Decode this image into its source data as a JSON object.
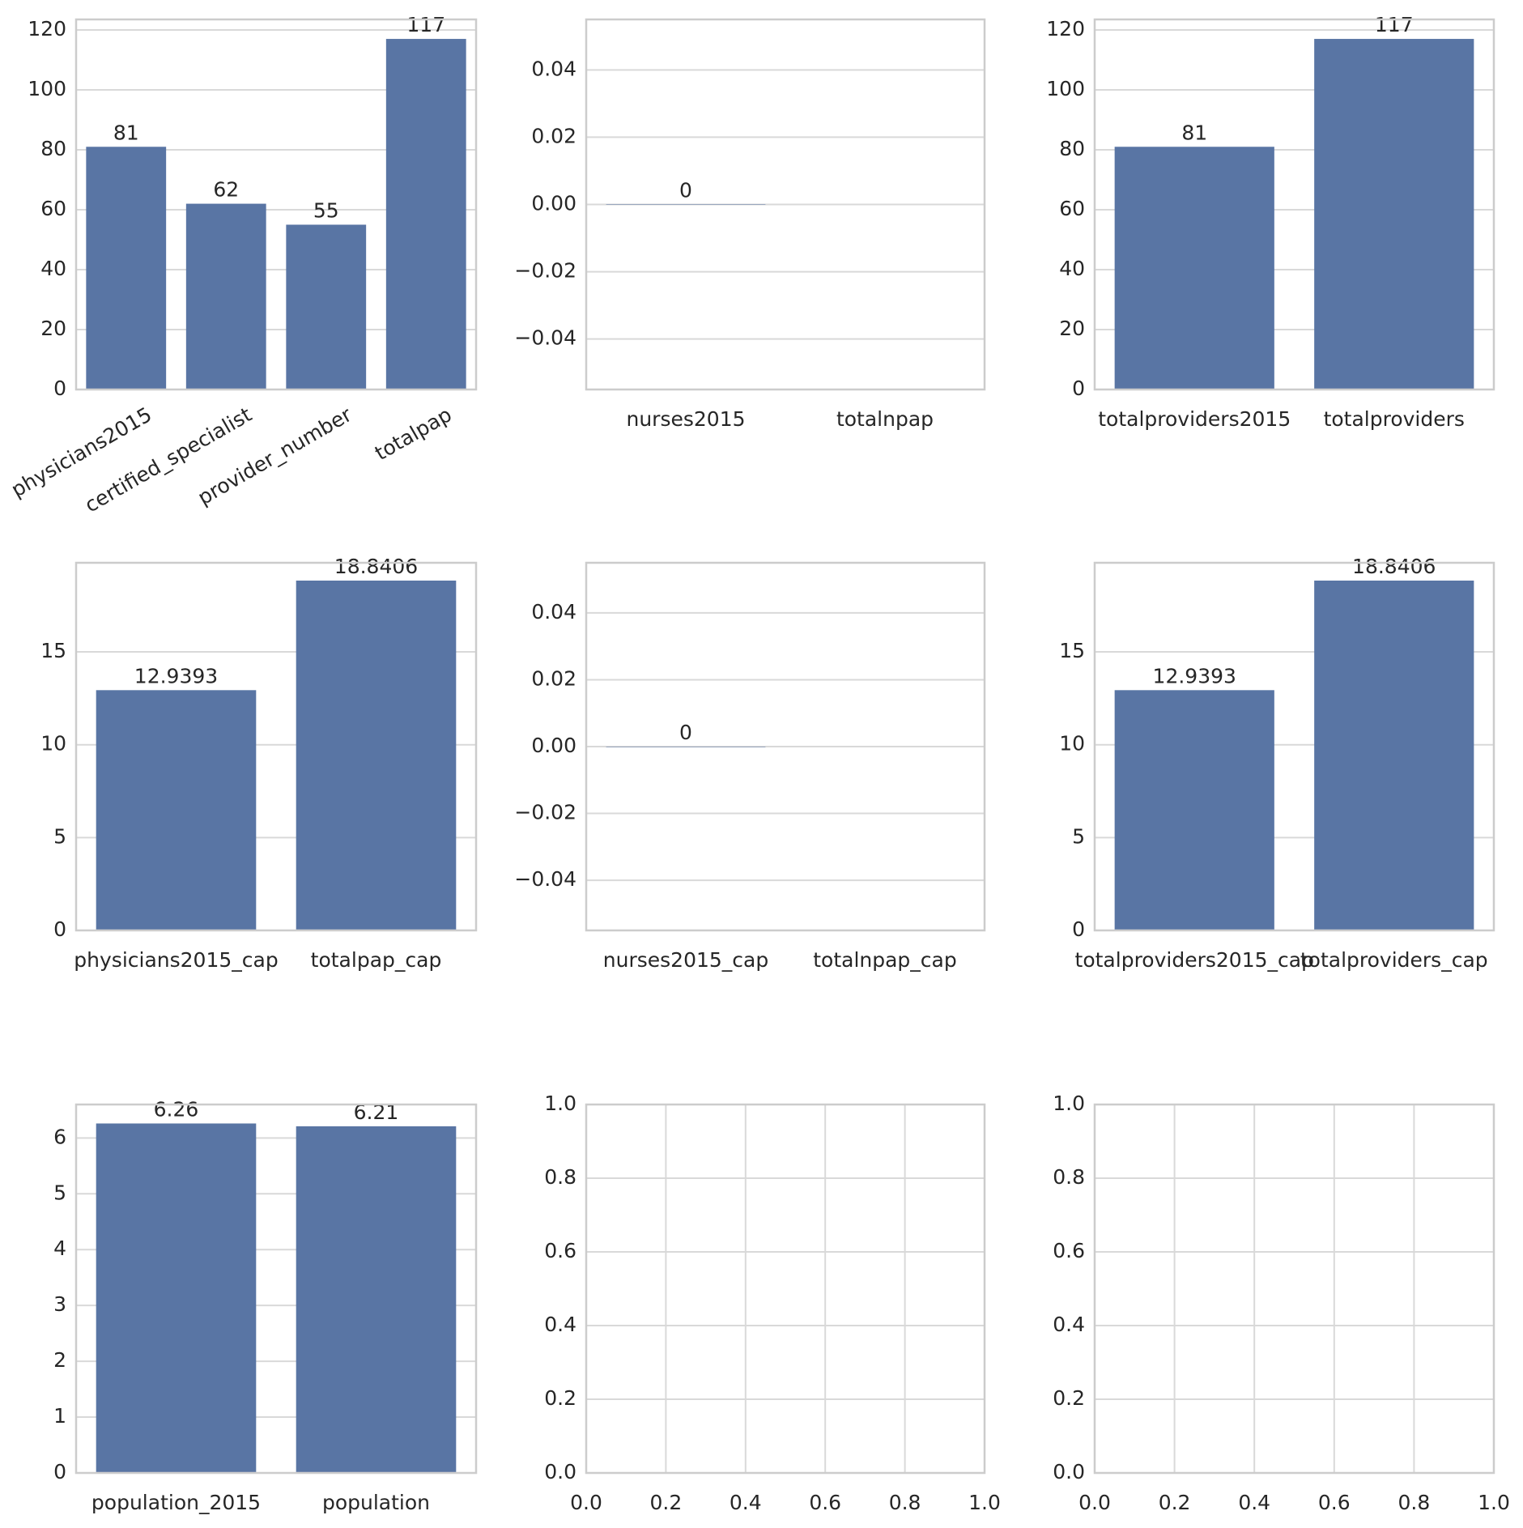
{
  "chart_data": [
    {
      "type": "bar",
      "categories": [
        "physicians2015",
        "certified_specialist",
        "provider_number",
        "totalpap"
      ],
      "values": [
        81,
        62,
        55,
        117
      ],
      "color": "#5975a4",
      "ylim": [
        0,
        123.5
      ],
      "yticks": [
        0,
        20,
        40,
        60,
        80,
        100,
        120
      ],
      "grid": true,
      "x_label_rotation": 30
    },
    {
      "type": "bar",
      "categories": [
        "nurses2015",
        "totalnpap"
      ],
      "values": [
        0,
        null
      ],
      "color": "#5975a4",
      "ylim": [
        -0.055,
        0.055
      ],
      "yticks": [
        {
          "value": -0.04,
          "label": "−0.04"
        },
        {
          "value": -0.02,
          "label": "−0.02"
        },
        {
          "value": 0,
          "label": "0.00"
        },
        0.02,
        0.04
      ],
      "grid": true
    },
    {
      "type": "bar",
      "categories": [
        "totalproviders2015",
        "totalproviders"
      ],
      "values": [
        81,
        117
      ],
      "color": "#5975a4",
      "ylim": [
        0,
        123.5
      ],
      "yticks": [
        0,
        20,
        40,
        60,
        80,
        100,
        120
      ],
      "grid": true
    },
    {
      "type": "bar",
      "categories": [
        "physicians2015_cap",
        "totalpap_cap"
      ],
      "values": [
        12.9393,
        18.8406
      ],
      "color": "#5975a4",
      "ylim": [
        0,
        19.8
      ],
      "yticks": [
        0,
        5,
        10,
        15
      ],
      "grid": true
    },
    {
      "type": "bar",
      "categories": [
        "nurses2015_cap",
        "totalnpap_cap"
      ],
      "values": [
        0,
        null
      ],
      "color": "#5975a4",
      "ylim": [
        -0.055,
        0.055
      ],
      "yticks": [
        {
          "value": -0.04,
          "label": "−0.04"
        },
        {
          "value": -0.02,
          "label": "−0.02"
        },
        {
          "value": 0,
          "label": "0.00"
        },
        0.02,
        0.04
      ],
      "grid": true
    },
    {
      "type": "bar",
      "categories": [
        "totalproviders2015_cap",
        "totalproviders_cap"
      ],
      "values": [
        12.9393,
        18.8406
      ],
      "color": "#5975a4",
      "ylim": [
        0,
        19.8
      ],
      "yticks": [
        0,
        5,
        10,
        15
      ],
      "grid": true
    },
    {
      "type": "bar",
      "categories": [
        "population_2015",
        "population"
      ],
      "values": [
        6.26,
        6.21
      ],
      "color": "#5975a4",
      "ylim": [
        0,
        6.6
      ],
      "yticks": [
        0,
        1,
        2,
        3,
        4,
        5,
        6
      ],
      "grid": true
    },
    {
      "type": "blank",
      "xlim": [
        0,
        1
      ],
      "ylim": [
        0,
        1
      ],
      "xticks": [
        {
          "value": 0,
          "label": "0.0"
        },
        0.2,
        0.4,
        0.6,
        0.8,
        {
          "value": 1,
          "label": "1.0"
        }
      ],
      "yticks": [
        {
          "value": 0,
          "label": "0.0"
        },
        0.2,
        0.4,
        0.6,
        0.8,
        {
          "value": 1,
          "label": "1.0"
        }
      ],
      "grid": true
    },
    {
      "type": "blank",
      "xlim": [
        0,
        1
      ],
      "ylim": [
        0,
        1
      ],
      "xticks": [
        {
          "value": 0,
          "label": "0.0"
        },
        0.2,
        0.4,
        0.6,
        0.8,
        {
          "value": 1,
          "label": "1.0"
        }
      ],
      "yticks": [
        {
          "value": 0,
          "label": "0.0"
        },
        0.2,
        0.4,
        0.6,
        0.8,
        {
          "value": 1,
          "label": "1.0"
        }
      ],
      "grid": true
    }
  ]
}
